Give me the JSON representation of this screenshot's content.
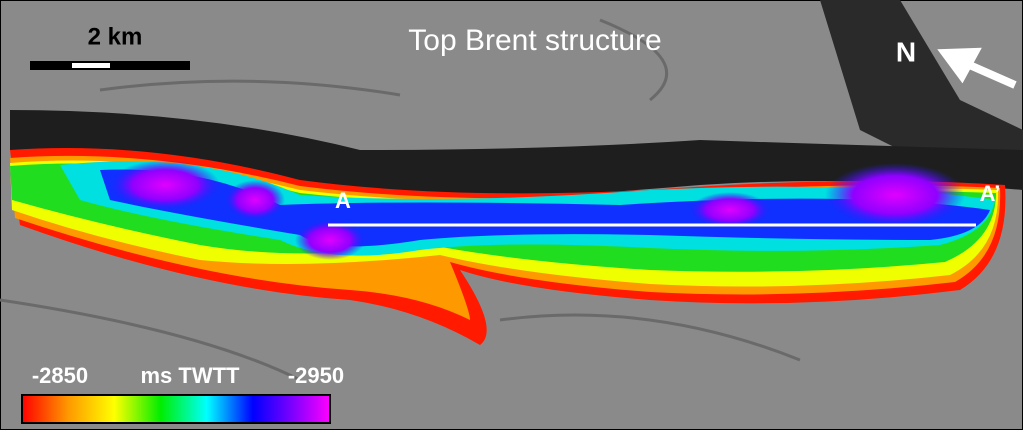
{
  "map": {
    "title": "Top Brent structure",
    "scale_label": "2 km",
    "north_label": "N",
    "section": {
      "start": "A",
      "end": "A’"
    },
    "legend": {
      "min_label": "-2850",
      "unit": "ms TWTT",
      "max_label": "-2950"
    }
  }
}
